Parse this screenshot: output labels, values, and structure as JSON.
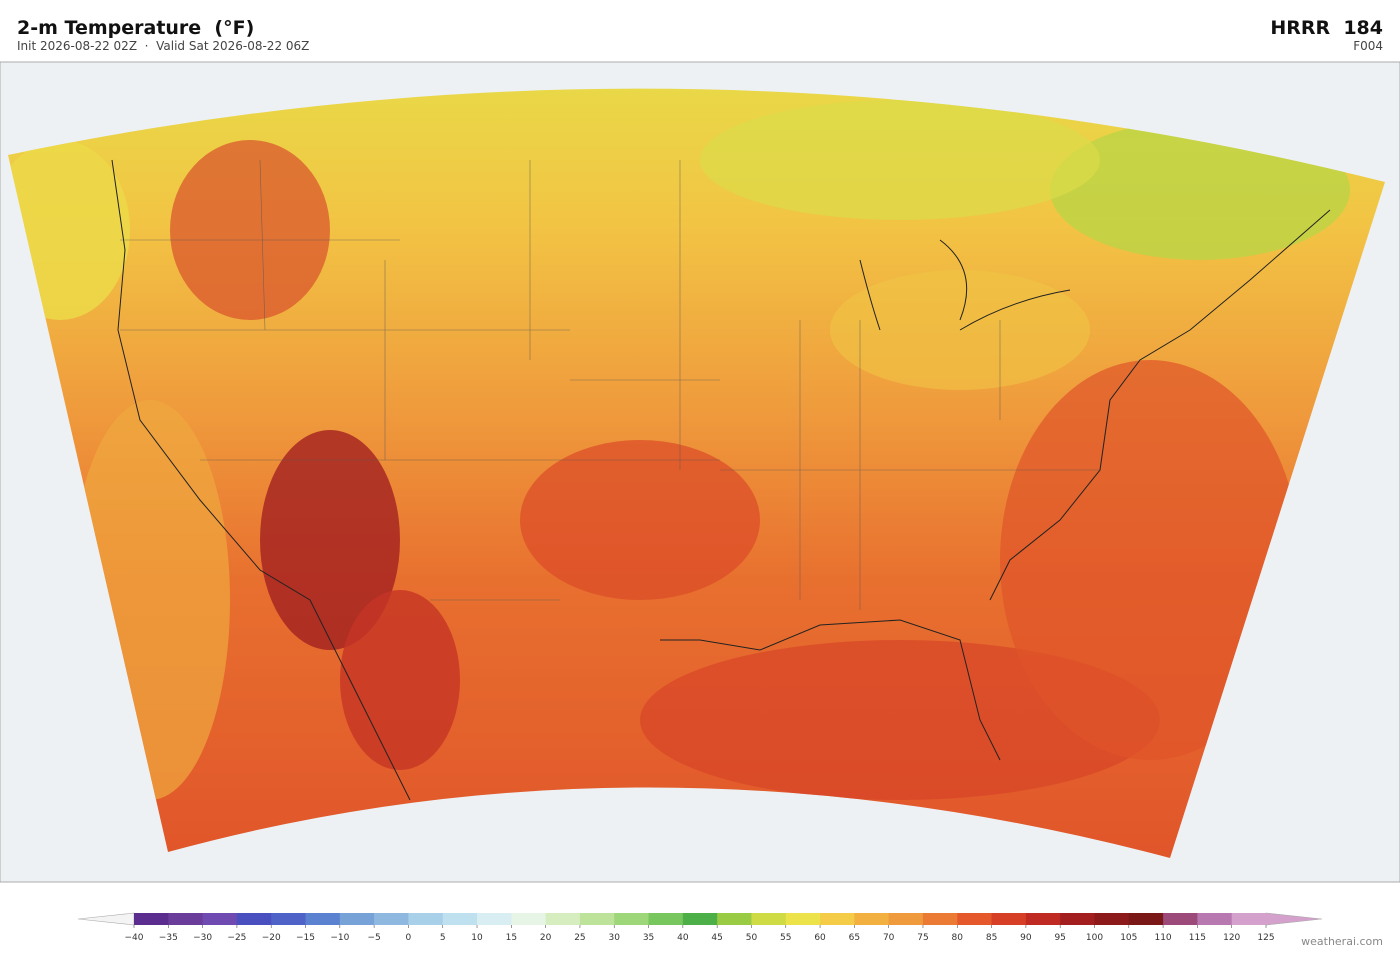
{
  "header": {
    "title": "2-m Temperature  (°F)",
    "subtitle": "Init 2026-08-22 02Z  ·  Valid Sat 2026-08-22 06Z",
    "model": "HRRR  184",
    "forecast": "F004"
  },
  "colorbar": {
    "ticks": [
      {
        "value": -40,
        "label": "−40"
      },
      {
        "value": -35,
        "label": "−35"
      },
      {
        "value": -30,
        "label": "−30"
      },
      {
        "value": -25,
        "label": "−25"
      },
      {
        "value": -20,
        "label": "−20"
      },
      {
        "value": -15,
        "label": "−15"
      },
      {
        "value": -10,
        "label": "−10"
      },
      {
        "value": -5,
        "label": "−5"
      },
      0,
      5,
      10,
      15,
      20,
      25,
      30,
      35,
      40,
      45,
      50,
      55,
      60,
      65,
      70,
      75,
      80,
      85,
      90,
      95,
      100,
      105,
      110,
      115,
      120,
      125
    ],
    "colors": [
      "#5b2d8e",
      "#6a3d9a",
      "#6f4ab0",
      "#4a4fc0",
      "#4f62c8",
      "#5b82d0",
      "#77a2d8",
      "#8fb8e0",
      "#a8d0e8",
      "#bfe0ee",
      "#d8eef2",
      "#e6f5e6",
      "#d6edc0",
      "#bde39a",
      "#9ed67a",
      "#78c75e",
      "#4caf48",
      "#9acb44",
      "#cfdb44",
      "#ece24a",
      "#f4cc48",
      "#f2b040",
      "#ef9a3c",
      "#ea7a34",
      "#e4582c",
      "#d63f26",
      "#bf2a22",
      "#a31e1e",
      "#8c1a1a",
      "#7a1818",
      "#9c4a7a",
      "#b878b0",
      "#d4a0cc"
    ],
    "under_color": "#f4f4f4",
    "over_color": "#d4a0cc"
  },
  "footer": {
    "credit": "weatherai.com"
  }
}
